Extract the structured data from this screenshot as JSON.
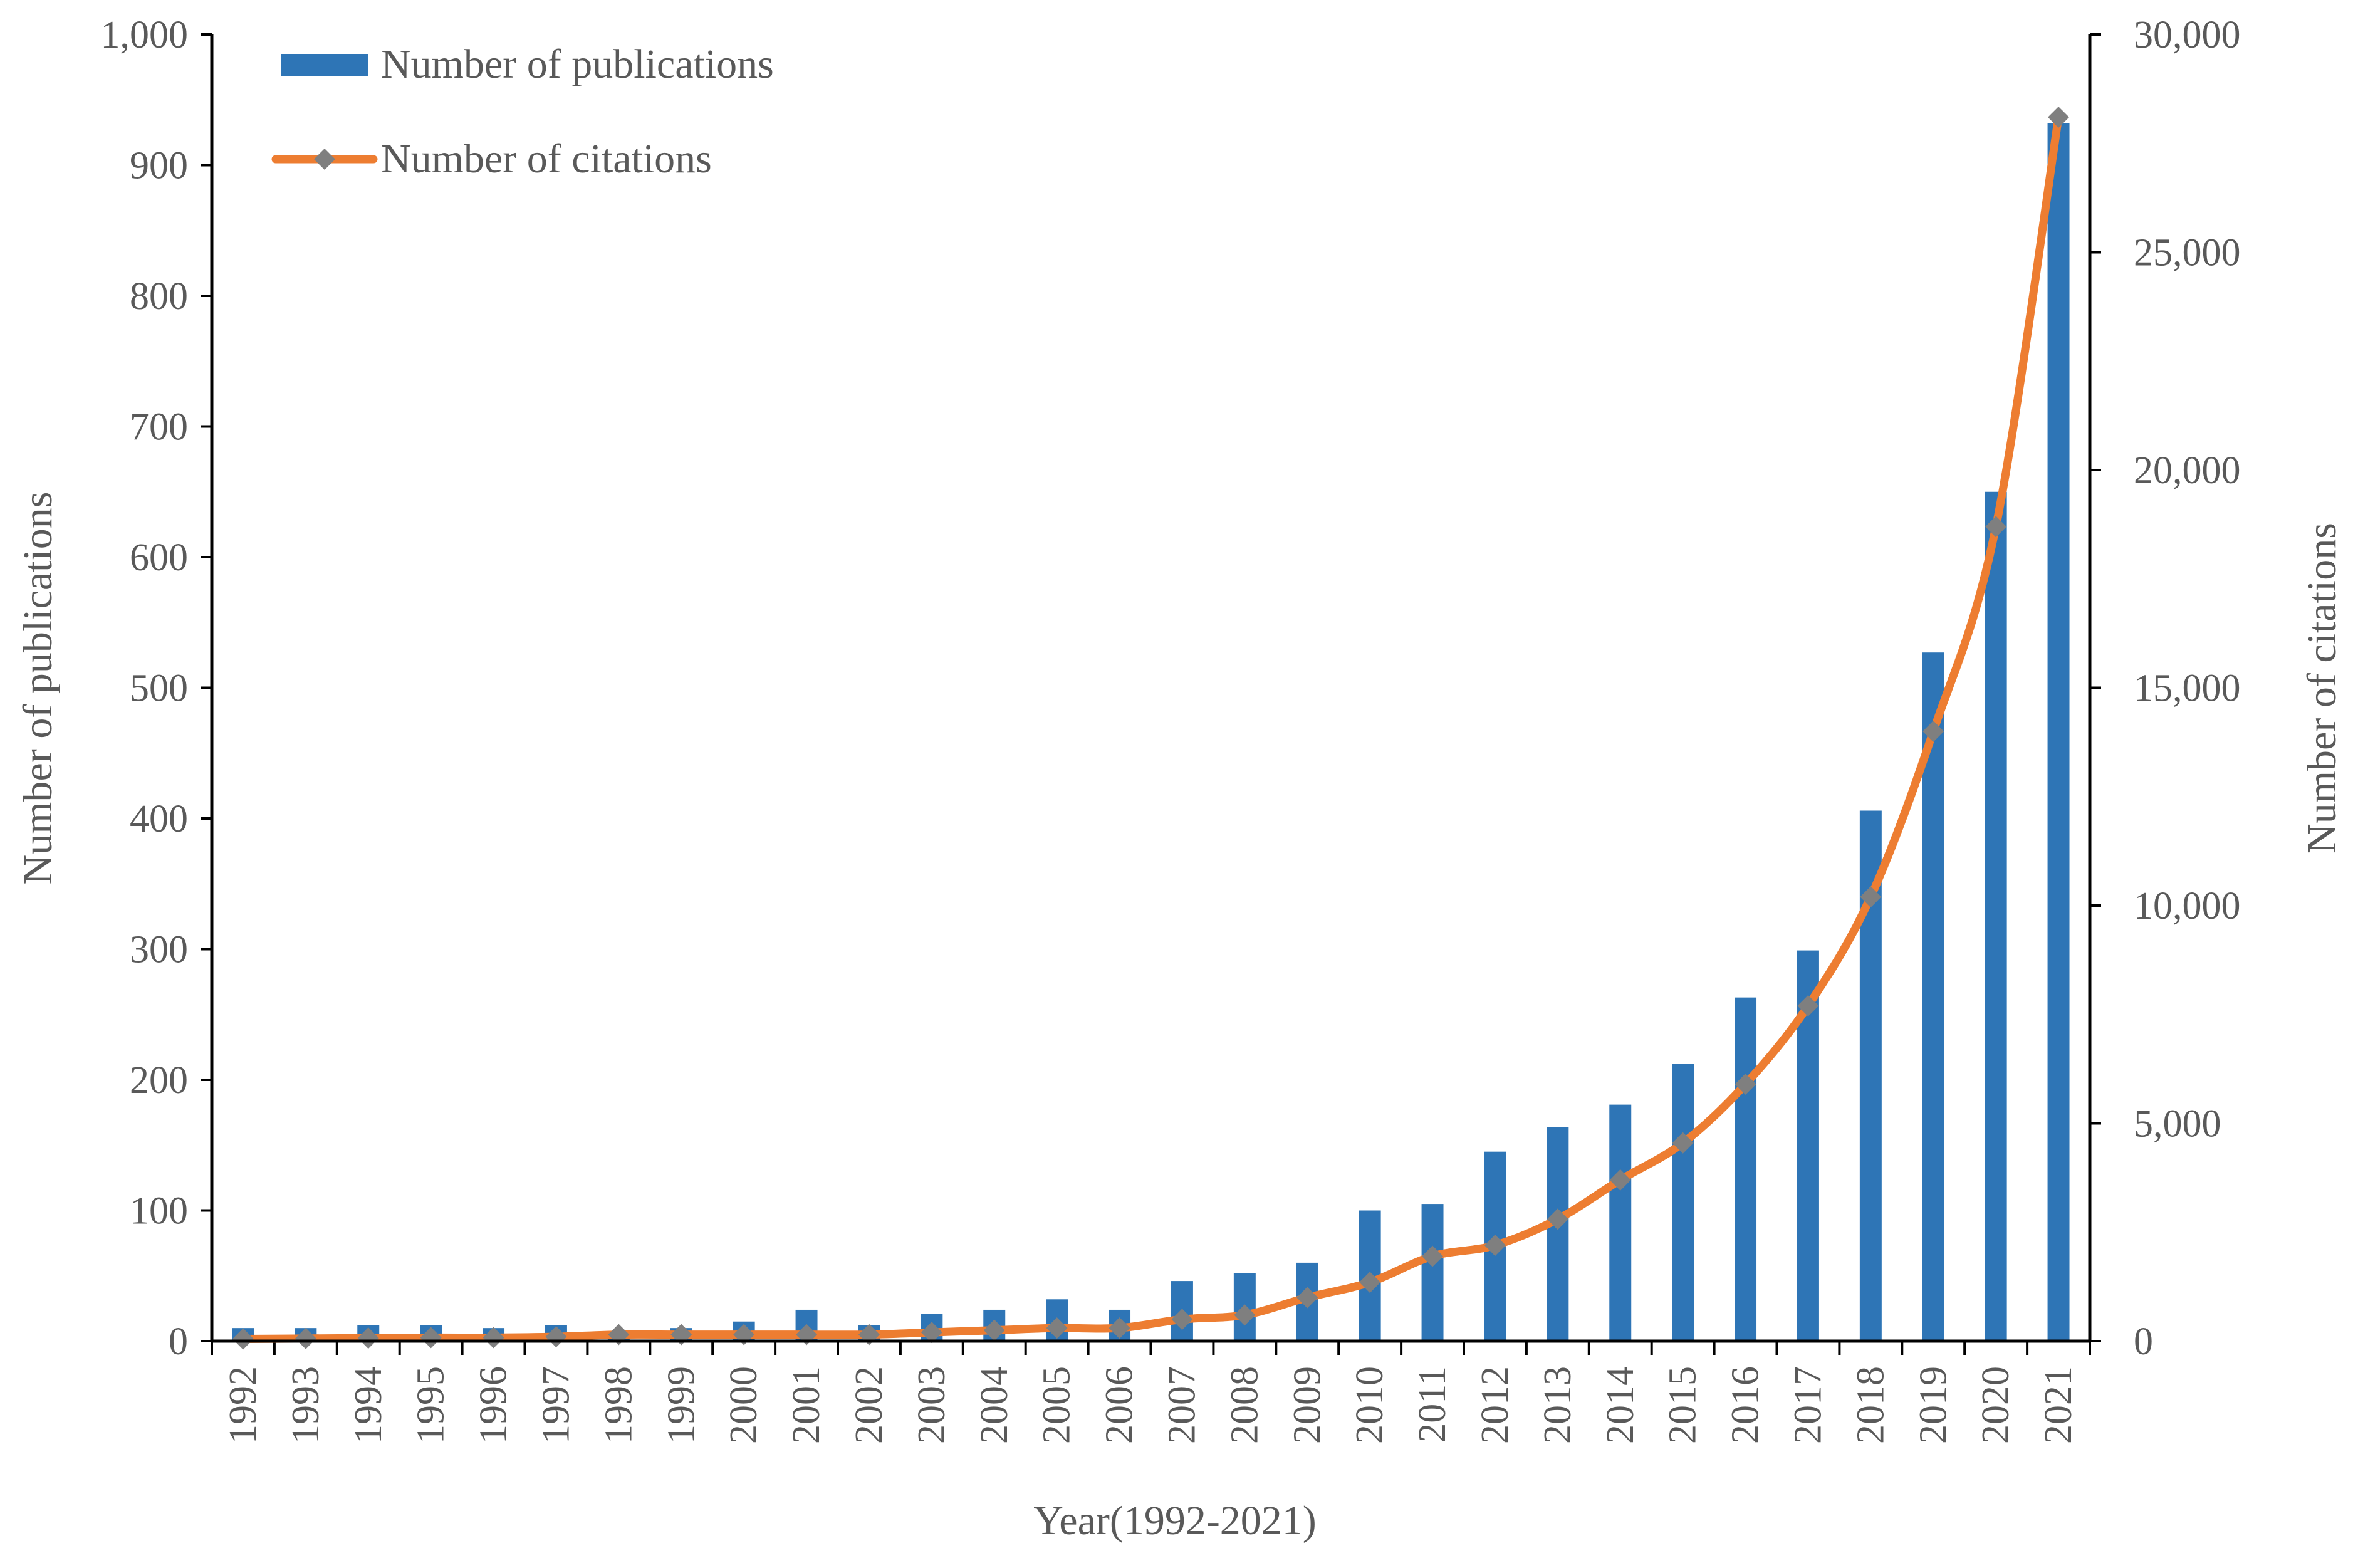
{
  "chart_data": {
    "type": "bar+line",
    "title": "",
    "xlabel": "Year(1992-2021)",
    "ylabel_left": "Number of publications",
    "ylabel_right": "Number of citations",
    "categories": [
      "1992",
      "1993",
      "1994",
      "1995",
      "1996",
      "1997",
      "1998",
      "1999",
      "2000",
      "2001",
      "2002",
      "2003",
      "2004",
      "2005",
      "2006",
      "2007",
      "2008",
      "2009",
      "2010",
      "2011",
      "2012",
      "2013",
      "2014",
      "2015",
      "2016",
      "2017",
      "2018",
      "2019",
      "2020",
      "2021"
    ],
    "ylim_left": [
      0,
      1000
    ],
    "ylim_right": [
      0,
      30000
    ],
    "yticks_left": [
      "0",
      "100",
      "200",
      "300",
      "400",
      "500",
      "600",
      "700",
      "800",
      "900",
      "1,000"
    ],
    "yticks_right": [
      "0",
      "5,000",
      "10,000",
      "15,000",
      "20,000",
      "25,000",
      "30,000"
    ],
    "series": [
      {
        "name": "Number of publications",
        "type": "bar",
        "axis": "left",
        "color": "#2e75b6",
        "values": [
          10,
          10,
          12,
          12,
          10,
          12,
          5,
          10,
          15,
          24,
          12,
          21,
          24,
          32,
          24,
          46,
          52,
          60,
          100,
          105,
          145,
          164,
          181,
          212,
          263,
          299,
          406,
          527,
          650,
          932
        ]
      },
      {
        "name": "Number of citations",
        "type": "line",
        "axis": "right",
        "color": "#ed7d31",
        "marker_color": "#7f7f7f",
        "values": [
          50,
          60,
          70,
          80,
          80,
          100,
          150,
          150,
          150,
          150,
          150,
          200,
          250,
          300,
          300,
          500,
          600,
          1000,
          1350,
          1950,
          2200,
          2800,
          3700,
          4550,
          5900,
          7700,
          10200,
          14000,
          18700,
          28100
        ]
      }
    ],
    "legend": {
      "position": "top-left",
      "items": [
        "Number of publications",
        "Number of citations"
      ]
    }
  }
}
